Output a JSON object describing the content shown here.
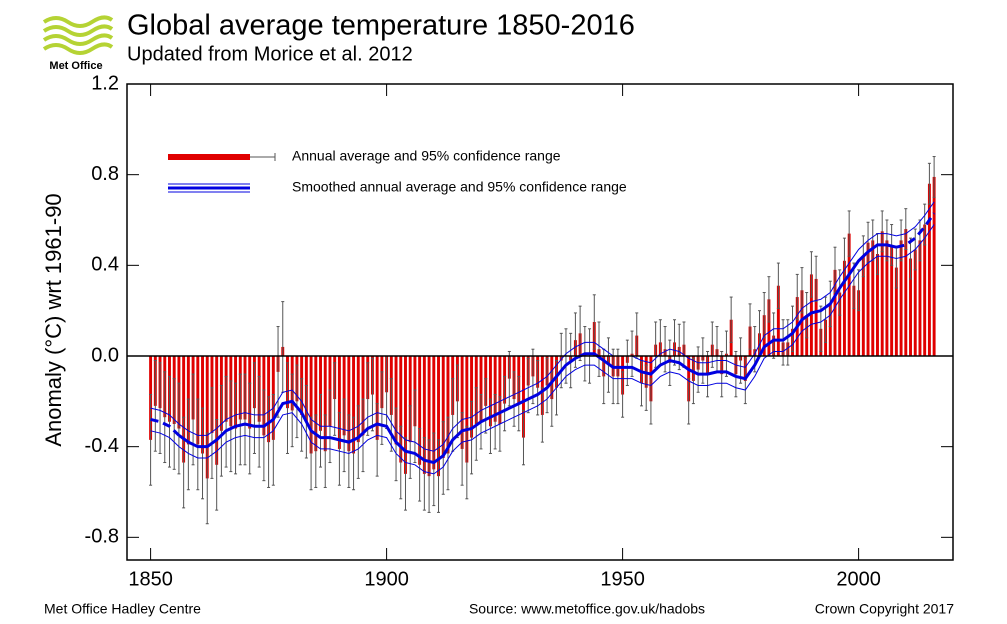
{
  "chart_data": {
    "type": "bar",
    "logo": "Met Office",
    "title": "Global average temperature 1850-2016",
    "subtitle": "Updated from Morice et al. 2012",
    "ylabel": "Anomaly (°C) wrt 1961-90",
    "footer": {
      "left": "Met Office Hadley Centre",
      "center": "Source: www.metoffice.gov.uk/hadobs",
      "right": "Crown Copyright 2017"
    },
    "xlim": [
      1845,
      2020
    ],
    "ylim": [
      -0.9,
      1.2
    ],
    "xticks": [
      1850,
      1900,
      1950,
      2000
    ],
    "yticks": [
      -0.8,
      -0.4,
      {
        "value": 0,
        "label": "0.0"
      },
      0.4,
      0.8,
      1.2
    ],
    "series": [
      {
        "name": "Annual average and 95% confidence range",
        "type": "bar",
        "color": "#e00000",
        "error_color": "#555555",
        "x": [
          1850,
          1851,
          1852,
          1853,
          1854,
          1855,
          1856,
          1857,
          1858,
          1859,
          1860,
          1861,
          1862,
          1863,
          1864,
          1865,
          1866,
          1867,
          1868,
          1869,
          1870,
          1871,
          1872,
          1873,
          1874,
          1875,
          1876,
          1877,
          1878,
          1879,
          1880,
          1881,
          1882,
          1883,
          1884,
          1885,
          1886,
          1887,
          1888,
          1889,
          1890,
          1891,
          1892,
          1893,
          1894,
          1895,
          1896,
          1897,
          1898,
          1899,
          1900,
          1901,
          1902,
          1903,
          1904,
          1905,
          1906,
          1907,
          1908,
          1909,
          1910,
          1911,
          1912,
          1913,
          1914,
          1915,
          1916,
          1917,
          1918,
          1919,
          1920,
          1921,
          1922,
          1923,
          1924,
          1925,
          1926,
          1927,
          1928,
          1929,
          1930,
          1931,
          1932,
          1933,
          1934,
          1935,
          1936,
          1937,
          1938,
          1939,
          1940,
          1941,
          1942,
          1943,
          1944,
          1945,
          1946,
          1947,
          1948,
          1949,
          1950,
          1951,
          1952,
          1953,
          1954,
          1955,
          1956,
          1957,
          1958,
          1959,
          1960,
          1961,
          1962,
          1963,
          1964,
          1965,
          1966,
          1967,
          1968,
          1969,
          1970,
          1971,
          1972,
          1973,
          1974,
          1975,
          1976,
          1977,
          1978,
          1979,
          1980,
          1981,
          1982,
          1983,
          1984,
          1985,
          1986,
          1987,
          1988,
          1989,
          1990,
          1991,
          1992,
          1993,
          1994,
          1995,
          1996,
          1997,
          1998,
          1999,
          2000,
          2001,
          2002,
          2003,
          2004,
          2005,
          2006,
          2007,
          2008,
          2009,
          2010,
          2011,
          2012,
          2013,
          2014,
          2015,
          2016
        ],
        "values": [
          -0.37,
          -0.22,
          -0.23,
          -0.27,
          -0.29,
          -0.3,
          -0.32,
          -0.47,
          -0.39,
          -0.28,
          -0.39,
          -0.43,
          -0.54,
          -0.34,
          -0.48,
          -0.33,
          -0.29,
          -0.31,
          -0.32,
          -0.28,
          -0.28,
          -0.32,
          -0.23,
          -0.29,
          -0.35,
          -0.38,
          -0.37,
          -0.07,
          0.04,
          -0.23,
          -0.24,
          -0.2,
          -0.26,
          -0.29,
          -0.43,
          -0.42,
          -0.33,
          -0.42,
          -0.31,
          -0.19,
          -0.41,
          -0.35,
          -0.42,
          -0.43,
          -0.38,
          -0.35,
          -0.19,
          -0.17,
          -0.37,
          -0.23,
          -0.16,
          -0.26,
          -0.39,
          -0.47,
          -0.52,
          -0.38,
          -0.31,
          -0.48,
          -0.52,
          -0.53,
          -0.5,
          -0.53,
          -0.45,
          -0.43,
          -0.26,
          -0.2,
          -0.41,
          -0.47,
          -0.36,
          -0.3,
          -0.29,
          -0.22,
          -0.31,
          -0.29,
          -0.3,
          -0.21,
          -0.1,
          -0.19,
          -0.21,
          -0.36,
          -0.13,
          -0.09,
          -0.14,
          -0.26,
          -0.13,
          -0.19,
          -0.14,
          -0.02,
          0.0,
          -0.02,
          0.07,
          0.1,
          0.01,
          0.0,
          0.15,
          0.03,
          -0.09,
          -0.04,
          -0.09,
          -0.09,
          -0.17,
          -0.03,
          0.01,
          0.09,
          -0.12,
          -0.14,
          -0.2,
          0.05,
          0.06,
          0.03,
          -0.03,
          0.06,
          0.04,
          0.05,
          -0.2,
          -0.11,
          -0.06,
          -0.02,
          -0.08,
          0.05,
          0.03,
          -0.08,
          0.01,
          0.16,
          -0.08,
          -0.02,
          -0.11,
          0.13,
          0.03,
          0.1,
          0.18,
          0.25,
          0.09,
          0.31,
          0.06,
          0.06,
          0.12,
          0.26,
          0.29,
          0.18,
          0.36,
          0.34,
          0.12,
          0.16,
          0.23,
          0.38,
          0.28,
          0.42,
          0.54,
          0.31,
          0.29,
          0.44,
          0.5,
          0.51,
          0.45,
          0.55,
          0.51,
          0.49,
          0.39,
          0.51,
          0.56,
          0.43,
          0.47,
          0.51,
          0.58,
          0.76,
          0.79
        ],
        "errors": [
          0.2,
          0.2,
          0.2,
          0.2,
          0.2,
          0.2,
          0.2,
          0.2,
          0.2,
          0.2,
          0.2,
          0.2,
          0.2,
          0.2,
          0.2,
          0.2,
          0.2,
          0.2,
          0.2,
          0.2,
          0.2,
          0.2,
          0.2,
          0.2,
          0.2,
          0.2,
          0.2,
          0.2,
          0.2,
          0.2,
          0.16,
          0.16,
          0.16,
          0.16,
          0.16,
          0.16,
          0.16,
          0.16,
          0.16,
          0.16,
          0.16,
          0.16,
          0.16,
          0.16,
          0.16,
          0.16,
          0.16,
          0.16,
          0.16,
          0.16,
          0.16,
          0.16,
          0.16,
          0.16,
          0.16,
          0.16,
          0.16,
          0.16,
          0.16,
          0.16,
          0.16,
          0.16,
          0.16,
          0.16,
          0.16,
          0.16,
          0.16,
          0.16,
          0.16,
          0.16,
          0.12,
          0.12,
          0.12,
          0.12,
          0.12,
          0.12,
          0.12,
          0.12,
          0.12,
          0.12,
          0.12,
          0.12,
          0.12,
          0.12,
          0.12,
          0.12,
          0.12,
          0.12,
          0.12,
          0.12,
          0.12,
          0.12,
          0.12,
          0.12,
          0.12,
          0.12,
          0.12,
          0.12,
          0.12,
          0.12,
          0.1,
          0.1,
          0.1,
          0.1,
          0.1,
          0.1,
          0.1,
          0.1,
          0.1,
          0.1,
          0.1,
          0.1,
          0.1,
          0.1,
          0.1,
          0.1,
          0.1,
          0.1,
          0.1,
          0.1,
          0.1,
          0.1,
          0.1,
          0.1,
          0.1,
          0.1,
          0.1,
          0.1,
          0.1,
          0.1,
          0.1,
          0.1,
          0.1,
          0.1,
          0.1,
          0.1,
          0.1,
          0.1,
          0.1,
          0.1,
          0.1,
          0.1,
          0.1,
          0.1,
          0.1,
          0.1,
          0.1,
          0.1,
          0.1,
          0.1,
          0.09,
          0.09,
          0.09,
          0.09,
          0.09,
          0.09,
          0.09,
          0.09,
          0.09,
          0.09,
          0.09,
          0.09,
          0.09,
          0.09,
          0.09,
          0.09,
          0.09
        ]
      },
      {
        "name": "Smoothed annual average and 95% confidence range",
        "type": "line",
        "color": "#0000e0",
        "band": 0.05,
        "x": [
          1850,
          1852,
          1854,
          1856,
          1858,
          1860,
          1862,
          1864,
          1866,
          1868,
          1870,
          1872,
          1874,
          1876,
          1878,
          1880,
          1882,
          1884,
          1886,
          1888,
          1890,
          1892,
          1894,
          1896,
          1898,
          1900,
          1902,
          1904,
          1906,
          1908,
          1910,
          1912,
          1914,
          1916,
          1918,
          1920,
          1922,
          1924,
          1926,
          1928,
          1930,
          1932,
          1934,
          1936,
          1938,
          1940,
          1942,
          1944,
          1946,
          1948,
          1950,
          1952,
          1954,
          1956,
          1958,
          1960,
          1962,
          1964,
          1966,
          1968,
          1970,
          1972,
          1974,
          1976,
          1978,
          1980,
          1982,
          1984,
          1986,
          1988,
          1990,
          1992,
          1994,
          1996,
          1998,
          2000,
          2002,
          2004,
          2006,
          2008,
          2010,
          2012,
          2014,
          2016
        ],
        "values": [
          -0.28,
          -0.29,
          -0.31,
          -0.35,
          -0.38,
          -0.4,
          -0.4,
          -0.37,
          -0.33,
          -0.31,
          -0.3,
          -0.31,
          -0.31,
          -0.28,
          -0.21,
          -0.2,
          -0.25,
          -0.33,
          -0.36,
          -0.36,
          -0.37,
          -0.38,
          -0.36,
          -0.32,
          -0.3,
          -0.31,
          -0.38,
          -0.42,
          -0.43,
          -0.46,
          -0.47,
          -0.44,
          -0.37,
          -0.33,
          -0.32,
          -0.29,
          -0.27,
          -0.25,
          -0.23,
          -0.21,
          -0.19,
          -0.17,
          -0.14,
          -0.09,
          -0.04,
          -0.01,
          0.01,
          0.01,
          -0.02,
          -0.05,
          -0.05,
          -0.05,
          -0.07,
          -0.08,
          -0.04,
          -0.02,
          -0.03,
          -0.06,
          -0.08,
          -0.08,
          -0.07,
          -0.07,
          -0.09,
          -0.1,
          -0.04,
          0.04,
          0.07,
          0.07,
          0.1,
          0.16,
          0.19,
          0.2,
          0.23,
          0.3,
          0.36,
          0.42,
          0.46,
          0.49,
          0.49,
          0.48,
          0.49,
          0.52,
          0.57,
          0.63
        ]
      }
    ]
  }
}
